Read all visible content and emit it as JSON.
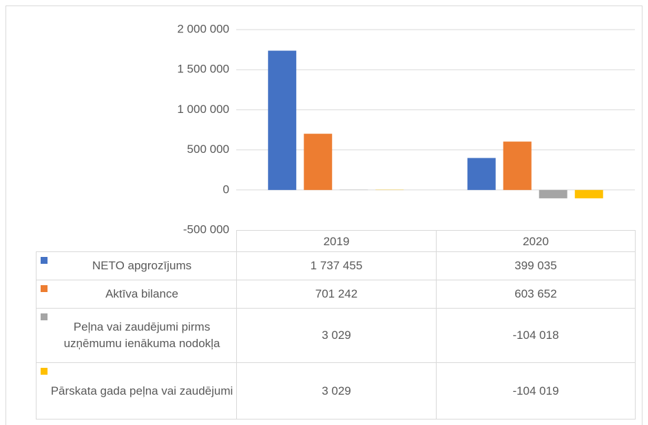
{
  "chart_data": {
    "type": "bar",
    "categories": [
      "2019",
      "2020"
    ],
    "series": [
      {
        "name": "NETO apgrozījums",
        "color": "#4472c4",
        "values": [
          1737455,
          399035
        ],
        "value_labels": [
          "1 737 455",
          "399 035"
        ]
      },
      {
        "name": "Aktīva bilance",
        "color": "#ed7d31",
        "values": [
          701242,
          603652
        ],
        "value_labels": [
          "701 242",
          "603 652"
        ]
      },
      {
        "name": "Peļna vai zaudējumi pirms uzņēmumu ienākuma nodokļa",
        "color": "#a5a5a5",
        "values": [
          3029,
          -104018
        ],
        "value_labels": [
          "3 029",
          "-104 018"
        ]
      },
      {
        "name": "Pārskata gada peļna vai zaudējumi",
        "color": "#ffc000",
        "values": [
          3029,
          -104019
        ],
        "value_labels": [
          "3 029",
          "-104 019"
        ]
      }
    ],
    "ylim": [
      -500000,
      2000000
    ],
    "yticks": [
      {
        "value": -500000,
        "label": "-500 000"
      },
      0,
      {
        "value": 500000,
        "label": "500 000"
      },
      {
        "value": 1000000,
        "label": "1 000 000"
      },
      {
        "value": 1500000,
        "label": "1 500 000"
      },
      {
        "value": 2000000,
        "label": "2 000 000"
      }
    ],
    "grid": true
  }
}
